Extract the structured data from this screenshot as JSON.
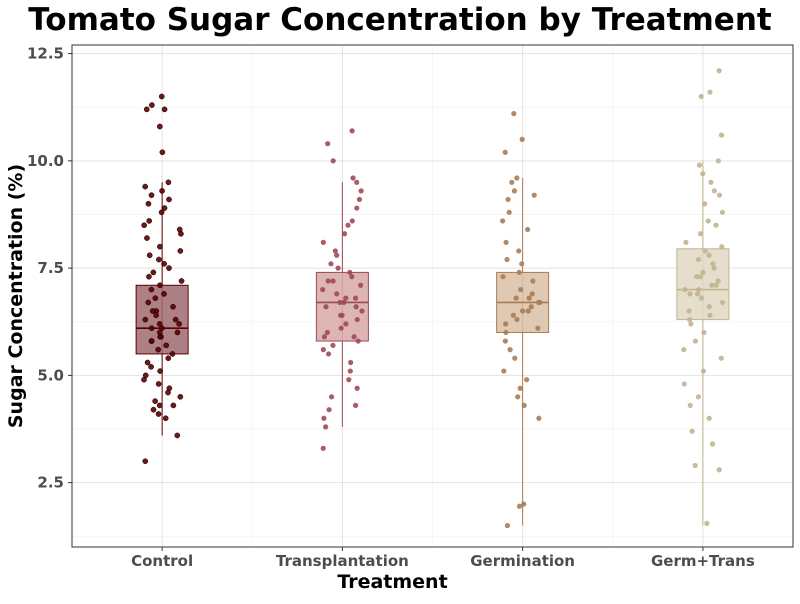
{
  "chart_data": {
    "type": "box",
    "title": "Tomato Sugar Concentration by Treatment",
    "xlabel": "Treatment",
    "ylabel": "Sugar Concentration (%)",
    "ylim": [
      1.0,
      12.7
    ],
    "yticks": [
      2.5,
      5.0,
      7.5,
      10.0,
      12.5
    ],
    "ytick_labels": [
      "2.5",
      "5.0",
      "7.5",
      "10.0",
      "12.5"
    ],
    "grid": true,
    "legend": "none",
    "categories": [
      "Control",
      "Transplantation",
      "Germination",
      "Germ+Trans"
    ],
    "series": [
      {
        "category": "Control",
        "color": "#5c0000",
        "box_fill": "#9e6a6e",
        "stats": {
          "whisker_low": 3.6,
          "q1": 5.5,
          "median": 6.1,
          "q3": 7.1,
          "whisker_high": 9.5
        },
        "points": [
          11.5,
          11.2,
          11.2,
          11.3,
          10.8,
          10.2,
          3.0,
          3.6,
          4.0,
          4.1,
          4.2,
          4.3,
          9.5,
          9.4,
          9.3,
          9.2,
          9.1,
          9.0,
          8.9,
          8.8,
          8.6,
          8.5,
          8.4,
          8.3,
          8.2,
          8.0,
          7.9,
          7.8,
          7.7,
          7.6,
          7.5,
          7.4,
          7.3,
          7.2,
          7.1,
          7.0,
          6.9,
          6.8,
          6.7,
          6.6,
          6.5,
          6.4,
          6.3,
          6.2,
          6.1,
          6.0,
          5.9,
          5.8,
          5.7,
          5.6,
          5.5,
          5.4,
          5.3,
          5.2,
          5.1,
          5.0,
          4.9,
          4.8,
          4.7,
          4.6,
          4.5,
          4.4,
          4.3,
          6.1,
          6.2,
          6.3,
          5.9,
          6.0,
          6.5,
          5.8
        ]
      },
      {
        "category": "Transplantation",
        "color": "#9e4a55",
        "box_fill": "#d8a8a8",
        "stats": {
          "whisker_low": 3.8,
          "q1": 5.8,
          "median": 6.7,
          "q3": 7.4,
          "whisker_high": 9.5
        },
        "points": [
          10.7,
          10.4,
          10.0,
          9.6,
          9.5,
          9.3,
          9.1,
          8.9,
          8.6,
          8.5,
          8.3,
          8.1,
          7.9,
          7.8,
          7.6,
          7.5,
          7.4,
          7.3,
          7.2,
          7.1,
          7.0,
          6.9,
          6.8,
          6.7,
          6.6,
          6.5,
          6.4,
          6.3,
          6.2,
          6.1,
          6.0,
          5.9,
          5.8,
          5.7,
          5.6,
          5.5,
          5.3,
          5.1,
          4.9,
          4.7,
          4.5,
          4.3,
          4.2,
          4.0,
          3.8,
          3.3,
          6.7,
          6.8,
          6.6,
          7.2,
          6.4,
          5.9
        ]
      },
      {
        "category": "Germination",
        "color": "#a87c55",
        "box_fill": "#d9bfa5",
        "stats": {
          "whisker_low": 1.5,
          "q1": 6.0,
          "median": 6.7,
          "q3": 7.4,
          "whisker_high": 9.6
        },
        "points": [
          11.1,
          10.5,
          10.2,
          9.6,
          9.5,
          9.3,
          9.2,
          9.1,
          8.8,
          8.6,
          8.4,
          8.1,
          7.9,
          7.7,
          7.6,
          7.4,
          7.3,
          7.2,
          7.0,
          6.9,
          6.8,
          6.7,
          6.6,
          6.5,
          6.4,
          6.3,
          6.2,
          6.1,
          6.0,
          5.8,
          5.6,
          5.4,
          5.1,
          4.9,
          4.7,
          4.5,
          4.3,
          4.0,
          2.0,
          1.95,
          1.5,
          6.7,
          6.8,
          6.5
        ]
      },
      {
        "category": "Germ+Trans",
        "color": "#c2b48e",
        "box_fill": "#e0d8c4",
        "stats": {
          "whisker_low": 1.5,
          "q1": 6.3,
          "median": 7.0,
          "q3": 7.95,
          "whisker_high": 10.0
        },
        "points": [
          12.1,
          11.6,
          11.5,
          10.6,
          10.0,
          9.9,
          9.7,
          9.5,
          9.3,
          9.2,
          9.0,
          8.8,
          8.6,
          8.5,
          8.3,
          8.1,
          8.0,
          7.9,
          7.8,
          7.7,
          7.6,
          7.5,
          7.4,
          7.3,
          7.2,
          7.1,
          7.0,
          6.9,
          6.8,
          6.7,
          6.6,
          6.5,
          6.4,
          6.3,
          6.2,
          6.0,
          5.8,
          5.6,
          5.4,
          5.1,
          4.8,
          4.5,
          4.3,
          4.0,
          3.7,
          3.4,
          2.9,
          2.8,
          1.55,
          7.0,
          7.1,
          6.9,
          7.3
        ]
      }
    ]
  }
}
